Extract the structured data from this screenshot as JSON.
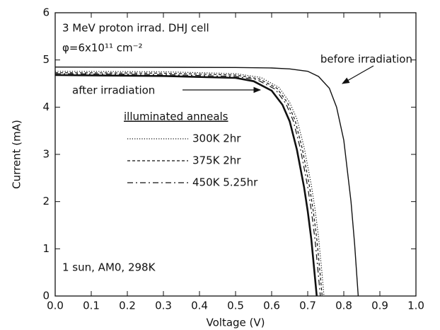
{
  "chart_data": {
    "type": "line",
    "title": "3 MeV proton irrad. DHJ cell",
    "subtitle": "φ=6x10¹¹ cm⁻²",
    "annotations": [
      "1 sun, AM0, 298K"
    ],
    "x_label": "Voltage (V)",
    "y_label": "Current (mA)",
    "legend_title": "illuminated anneals",
    "xlim": [
      0,
      1.0
    ],
    "xticks": [
      {
        "value": 0,
        "label": "0.0"
      },
      {
        "value": 0.1,
        "label": "0.1"
      },
      {
        "value": 0.2,
        "label": "0.2"
      },
      {
        "value": 0.3,
        "label": "0.3"
      },
      {
        "value": 0.4,
        "label": "0.4"
      },
      {
        "value": 0.5,
        "label": "0.5"
      },
      {
        "value": 0.6,
        "label": "0.6"
      },
      {
        "value": 0.7,
        "label": "0.7"
      },
      {
        "value": 0.8,
        "label": "0.8"
      },
      {
        "value": 0.9,
        "label": "0.9"
      },
      {
        "value": 1.0,
        "label": "1.0"
      }
    ],
    "ylim": [
      0,
      6
    ],
    "yticks": [
      0,
      1,
      2,
      3,
      4,
      5,
      6
    ],
    "series": [
      {
        "name": "before irradiation",
        "color": "#111",
        "style": "solid",
        "width": 1.4,
        "x": [
          0,
          0.5,
          0.6,
          0.65,
          0.7,
          0.73,
          0.76,
          0.78,
          0.8,
          0.82,
          0.83,
          0.84
        ],
        "values": [
          4.85,
          4.84,
          4.83,
          4.81,
          4.76,
          4.65,
          4.4,
          4.0,
          3.3,
          2.0,
          1.1,
          0
        ]
      },
      {
        "name": "after irradiation",
        "color": "#111",
        "style": "solid",
        "width": 2.6,
        "x": [
          0,
          0.3,
          0.5,
          0.55,
          0.6,
          0.63,
          0.65,
          0.67,
          0.69,
          0.7,
          0.71,
          0.72,
          0.725
        ],
        "values": [
          4.68,
          4.66,
          4.62,
          4.55,
          4.35,
          4.05,
          3.7,
          3.1,
          2.3,
          1.8,
          1.2,
          0.4,
          0
        ]
      },
      {
        "name": "300K 2hr",
        "color": "#111",
        "style": "dotted",
        "width": 1.2,
        "x": [
          0,
          0.3,
          0.5,
          0.57,
          0.62,
          0.65,
          0.67,
          0.69,
          0.71,
          0.72,
          0.73,
          0.74,
          0.745
        ],
        "values": [
          4.76,
          4.75,
          4.71,
          4.63,
          4.42,
          4.1,
          3.75,
          3.15,
          2.35,
          1.85,
          1.25,
          0.45,
          0
        ]
      },
      {
        "name": "375K 2hr",
        "color": "#111",
        "style": "dashed",
        "width": 1.2,
        "x": [
          0,
          0.3,
          0.5,
          0.565,
          0.615,
          0.645,
          0.665,
          0.685,
          0.705,
          0.715,
          0.725,
          0.735,
          0.74
        ],
        "values": [
          4.73,
          4.72,
          4.68,
          4.6,
          4.4,
          4.08,
          3.72,
          3.12,
          2.32,
          1.82,
          1.22,
          0.42,
          0
        ]
      },
      {
        "name": "450K 5.25hr",
        "color": "#111",
        "style": "dashdot",
        "width": 1.2,
        "x": [
          0,
          0.3,
          0.5,
          0.56,
          0.61,
          0.64,
          0.66,
          0.68,
          0.7,
          0.71,
          0.72,
          0.73,
          0.735
        ],
        "values": [
          4.71,
          4.69,
          4.65,
          4.58,
          4.38,
          4.07,
          3.71,
          3.11,
          2.31,
          1.81,
          1.21,
          0.41,
          0
        ]
      }
    ]
  }
}
